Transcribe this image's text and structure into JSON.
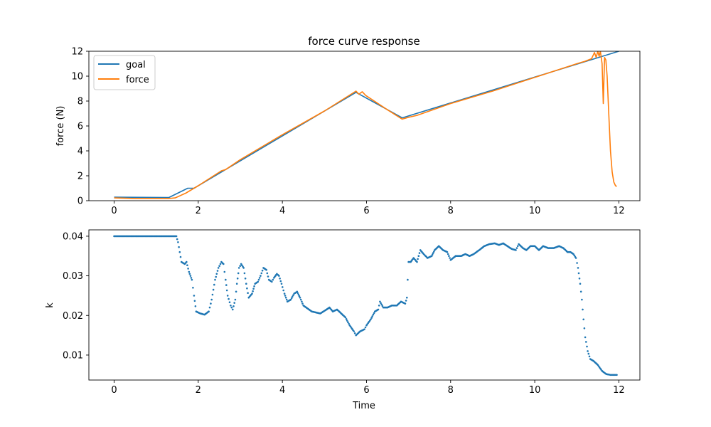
{
  "chart_data": [
    {
      "type": "line",
      "title": "force curve response",
      "xlabel": "",
      "ylabel": "force (N)",
      "xlim": [
        -0.6,
        12.5
      ],
      "ylim": [
        0,
        12
      ],
      "xticks": [
        "0",
        "2",
        "4",
        "6",
        "8",
        "10",
        "12"
      ],
      "yticks": [
        "0",
        "2",
        "4",
        "6",
        "8",
        "10",
        "12"
      ],
      "legend_position": "top-left",
      "series": [
        {
          "name": "goal",
          "color": "#1f77b4",
          "points": [
            [
              0,
              0.28
            ],
            [
              1.3,
              0.25
            ],
            [
              1.75,
              1.0
            ],
            [
              1.9,
              1.0
            ],
            [
              5.75,
              8.7
            ],
            [
              6.85,
              6.65
            ],
            [
              12.0,
              12.0
            ]
          ]
        },
        {
          "name": "force",
          "color": "#ff7f0e",
          "points": [
            [
              0,
              0.22
            ],
            [
              0.5,
              0.18
            ],
            [
              1.3,
              0.18
            ],
            [
              1.45,
              0.22
            ],
            [
              1.7,
              0.6
            ],
            [
              2.0,
              1.2
            ],
            [
              2.55,
              2.4
            ],
            [
              2.65,
              2.5
            ],
            [
              3.0,
              3.3
            ],
            [
              4.0,
              5.3
            ],
            [
              5.0,
              7.2
            ],
            [
              5.75,
              8.8
            ],
            [
              5.82,
              8.55
            ],
            [
              5.9,
              8.75
            ],
            [
              5.98,
              8.45
            ],
            [
              6.5,
              7.3
            ],
            [
              6.85,
              6.55
            ],
            [
              7.0,
              6.7
            ],
            [
              7.2,
              6.85
            ],
            [
              8.0,
              7.8
            ],
            [
              9.0,
              8.8
            ],
            [
              10.0,
              9.9
            ],
            [
              11.0,
              11.0
            ],
            [
              11.2,
              11.2
            ],
            [
              11.35,
              11.4
            ],
            [
              11.42,
              11.9
            ],
            [
              11.46,
              11.5
            ],
            [
              11.5,
              12.0
            ],
            [
              11.53,
              11.6
            ],
            [
              11.56,
              12.0
            ],
            [
              11.6,
              11.0
            ],
            [
              11.63,
              7.8
            ],
            [
              11.66,
              11.5
            ],
            [
              11.69,
              11.3
            ],
            [
              11.72,
              10.0
            ],
            [
              11.76,
              7.0
            ],
            [
              11.8,
              4.0
            ],
            [
              11.84,
              2.3
            ],
            [
              11.88,
              1.5
            ],
            [
              11.92,
              1.2
            ],
            [
              11.95,
              1.15
            ]
          ]
        }
      ]
    },
    {
      "type": "scatter",
      "title": "",
      "xlabel": "Time",
      "ylabel": "k",
      "xlim": [
        -0.6,
        12.5
      ],
      "ylim": [
        0.0037,
        0.0416
      ],
      "xticks": [
        "0",
        "2",
        "4",
        "6",
        "8",
        "10",
        "12"
      ],
      "yticks": [
        "0.01",
        "0.02",
        "0.03",
        "0.04"
      ],
      "series": [
        {
          "color": "#1f77b4",
          "points": [
            [
              0,
              0.04
            ],
            [
              1.48,
              0.04
            ],
            [
              1.52,
              0.0385
            ],
            [
              1.6,
              0.0335
            ],
            [
              1.68,
              0.033
            ],
            [
              1.72,
              0.0335
            ],
            [
              1.78,
              0.031
            ],
            [
              1.85,
              0.029
            ],
            [
              1.9,
              0.025
            ],
            [
              1.95,
              0.021
            ],
            [
              2.05,
              0.0205
            ],
            [
              2.15,
              0.0202
            ],
            [
              2.25,
              0.021
            ],
            [
              2.32,
              0.024
            ],
            [
              2.4,
              0.029
            ],
            [
              2.48,
              0.032
            ],
            [
              2.55,
              0.0335
            ],
            [
              2.6,
              0.033
            ],
            [
              2.65,
              0.029
            ],
            [
              2.7,
              0.025
            ],
            [
              2.77,
              0.0225
            ],
            [
              2.82,
              0.0215
            ],
            [
              2.88,
              0.024
            ],
            [
              2.92,
              0.028
            ],
            [
              2.97,
              0.032
            ],
            [
              3.02,
              0.033
            ],
            [
              3.08,
              0.032
            ],
            [
              3.14,
              0.028
            ],
            [
              3.2,
              0.0245
            ],
            [
              3.28,
              0.0255
            ],
            [
              3.35,
              0.028
            ],
            [
              3.42,
              0.0285
            ],
            [
              3.48,
              0.03
            ],
            [
              3.55,
              0.032
            ],
            [
              3.62,
              0.0315
            ],
            [
              3.68,
              0.029
            ],
            [
              3.75,
              0.0285
            ],
            [
              3.8,
              0.0295
            ],
            [
              3.87,
              0.0305
            ],
            [
              3.92,
              0.03
            ],
            [
              3.98,
              0.028
            ],
            [
              4.05,
              0.0255
            ],
            [
              4.12,
              0.0235
            ],
            [
              4.2,
              0.024
            ],
            [
              4.28,
              0.0255
            ],
            [
              4.35,
              0.026
            ],
            [
              4.42,
              0.0245
            ],
            [
              4.5,
              0.0225
            ],
            [
              4.7,
              0.021
            ],
            [
              4.9,
              0.0205
            ],
            [
              5.05,
              0.0215
            ],
            [
              5.12,
              0.022
            ],
            [
              5.2,
              0.021
            ],
            [
              5.3,
              0.0215
            ],
            [
              5.4,
              0.0205
            ],
            [
              5.5,
              0.0195
            ],
            [
              5.6,
              0.0175
            ],
            [
              5.7,
              0.016
            ],
            [
              5.75,
              0.015
            ],
            [
              5.85,
              0.016
            ],
            [
              5.95,
              0.0165
            ],
            [
              6.0,
              0.0175
            ],
            [
              6.1,
              0.019
            ],
            [
              6.2,
              0.021
            ],
            [
              6.28,
              0.0215
            ],
            [
              6.32,
              0.0235
            ],
            [
              6.4,
              0.022
            ],
            [
              6.5,
              0.022
            ],
            [
              6.6,
              0.0225
            ],
            [
              6.72,
              0.0225
            ],
            [
              6.82,
              0.0235
            ],
            [
              6.92,
              0.023
            ],
            [
              6.96,
              0.0245
            ],
            [
              7.0,
              0.0335
            ],
            [
              7.05,
              0.0335
            ],
            [
              7.12,
              0.0345
            ],
            [
              7.2,
              0.0335
            ],
            [
              7.28,
              0.0365
            ],
            [
              7.36,
              0.0355
            ],
            [
              7.45,
              0.0345
            ],
            [
              7.55,
              0.035
            ],
            [
              7.62,
              0.0365
            ],
            [
              7.72,
              0.0375
            ],
            [
              7.82,
              0.0365
            ],
            [
              7.92,
              0.036
            ],
            [
              8.0,
              0.034
            ],
            [
              8.12,
              0.035
            ],
            [
              8.25,
              0.035
            ],
            [
              8.35,
              0.0355
            ],
            [
              8.45,
              0.035
            ],
            [
              8.55,
              0.0355
            ],
            [
              8.68,
              0.0365
            ],
            [
              8.8,
              0.0375
            ],
            [
              8.92,
              0.038
            ],
            [
              9.05,
              0.0382
            ],
            [
              9.15,
              0.0378
            ],
            [
              9.25,
              0.0382
            ],
            [
              9.35,
              0.0375
            ],
            [
              9.45,
              0.0368
            ],
            [
              9.55,
              0.0365
            ],
            [
              9.62,
              0.038
            ],
            [
              9.72,
              0.037
            ],
            [
              9.8,
              0.0365
            ],
            [
              9.9,
              0.0375
            ],
            [
              10.0,
              0.0375
            ],
            [
              10.1,
              0.0365
            ],
            [
              10.2,
              0.0375
            ],
            [
              10.32,
              0.037
            ],
            [
              10.45,
              0.037
            ],
            [
              10.58,
              0.0375
            ],
            [
              10.68,
              0.037
            ],
            [
              10.78,
              0.036
            ],
            [
              10.85,
              0.036
            ],
            [
              10.92,
              0.0355
            ],
            [
              10.98,
              0.0345
            ],
            [
              11.03,
              0.032
            ],
            [
              11.08,
              0.028
            ],
            [
              11.12,
              0.024
            ],
            [
              11.16,
              0.019
            ],
            [
              11.2,
              0.0145
            ],
            [
              11.26,
              0.011
            ],
            [
              11.32,
              0.009
            ],
            [
              11.4,
              0.0085
            ],
            [
              11.5,
              0.0075
            ],
            [
              11.6,
              0.006
            ],
            [
              11.7,
              0.0052
            ],
            [
              11.8,
              0.005
            ],
            [
              11.95,
              0.005
            ]
          ]
        }
      ]
    }
  ]
}
